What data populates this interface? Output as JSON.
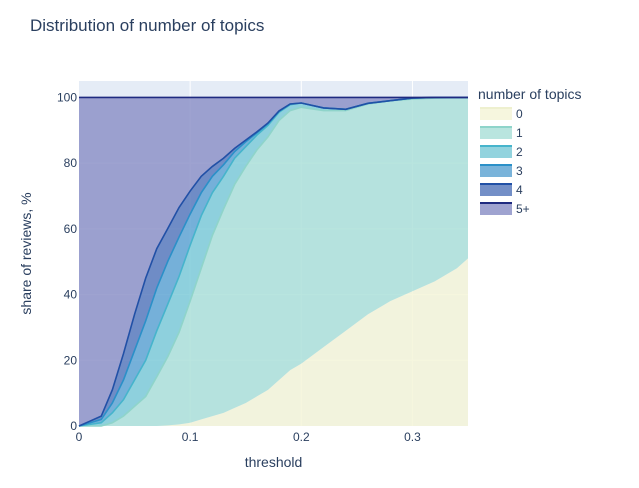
{
  "chart_data": {
    "type": "area",
    "title": "Distribution of number of topics",
    "xlabel": "threshold",
    "ylabel": "share of reviews, %",
    "xlim": [
      0,
      0.35
    ],
    "ylim": [
      0,
      105
    ],
    "x_ticks": [
      0,
      0.1,
      0.2,
      0.3
    ],
    "x_tick_labels": [
      "0",
      "0.1",
      "0.2",
      "0.3"
    ],
    "y_ticks": [
      0,
      20,
      40,
      60,
      80,
      100
    ],
    "y_tick_labels": [
      "0",
      "20",
      "40",
      "60",
      "80",
      "100"
    ],
    "grid": true,
    "stacked": true,
    "legend_title": "number of topics",
    "legend_position": "right",
    "x": [
      0,
      0.01,
      0.02,
      0.03,
      0.04,
      0.05,
      0.06,
      0.07,
      0.08,
      0.09,
      0.1,
      0.11,
      0.12,
      0.13,
      0.14,
      0.15,
      0.16,
      0.17,
      0.18,
      0.19,
      0.2,
      0.22,
      0.24,
      0.26,
      0.28,
      0.3,
      0.32,
      0.34,
      0.35
    ],
    "series": [
      {
        "name": "0",
        "fill": "#f5f5d8",
        "line": "#eef0cf",
        "values": [
          0,
          0,
          0,
          0,
          0,
          0,
          0,
          0,
          0.2,
          0.5,
          1,
          2,
          3,
          4,
          5.5,
          7,
          9,
          11,
          14,
          17,
          19,
          24,
          29,
          34,
          38,
          41,
          44,
          48,
          51
        ]
      },
      {
        "name": "1",
        "fill": "#ade0d9",
        "line": "#8fd4ca",
        "values": [
          0,
          0,
          0,
          1,
          3,
          6,
          9,
          15,
          21,
          28,
          37,
          46,
          55,
          62,
          68,
          72,
          75,
          77,
          79,
          79,
          78,
          72,
          67,
          64,
          61,
          58.5,
          55.8,
          52,
          49
        ]
      },
      {
        "name": "2",
        "fill": "#7fcbd8",
        "line": "#46b4cc",
        "values": [
          0,
          0.5,
          1,
          3,
          5,
          8,
          11,
          14,
          16,
          17,
          17,
          16,
          13,
          10,
          8,
          6,
          4.5,
          3.5,
          2.5,
          1.8,
          1.3,
          0.8,
          0.4,
          0.2,
          0,
          0.3,
          0.2,
          0,
          0
        ]
      },
      {
        "name": "3",
        "fill": "#62a6d4",
        "line": "#2b90c8",
        "values": [
          0,
          0.5,
          1,
          3,
          6,
          9,
          12,
          13,
          13,
          12,
          9.5,
          7,
          5,
          3.5,
          2,
          1.5,
          0.7,
          0.5,
          0.3,
          0.2,
          0,
          0,
          0,
          0,
          0,
          0,
          0,
          0,
          0
        ]
      },
      {
        "name": "4",
        "fill": "#5a7bbd",
        "line": "#2150a6",
        "values": [
          0,
          0.5,
          1,
          4,
          8,
          11,
          13,
          12,
          10,
          9,
          7,
          5,
          3,
          2,
          1,
          0.5,
          0.3,
          0.2,
          0.1,
          0,
          0,
          0,
          0,
          0,
          0,
          0,
          0,
          0,
          0
        ]
      },
      {
        "name": "5+",
        "fill": "#8e93c8",
        "line": "#1f2a80",
        "values": [
          100,
          98.5,
          97,
          89,
          78,
          66,
          55,
          46,
          39.8,
          33.5,
          28.5,
          24,
          21,
          18.5,
          15.5,
          13,
          10.5,
          7.8,
          4.1,
          2,
          1.7,
          3.2,
          3.6,
          1.8,
          1,
          0.2,
          0,
          0,
          0
        ]
      }
    ]
  }
}
